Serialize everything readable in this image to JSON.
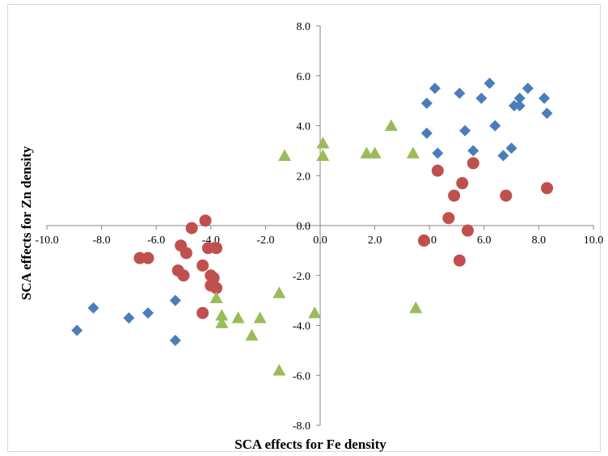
{
  "chart_data": {
    "type": "scatter",
    "xlabel": "SCA effects for Fe density",
    "ylabel": "SCA effects for Zn density",
    "xlim": [
      -10,
      10
    ],
    "ylim": [
      -8,
      8
    ],
    "x_ticks": [
      -10,
      -8,
      -6,
      -4,
      -2,
      0,
      2,
      4,
      6,
      8,
      10
    ],
    "y_ticks": [
      -8,
      -6,
      -4,
      -2,
      0,
      2,
      4,
      6,
      8
    ],
    "x_tick_labels": [
      "-10.0",
      "-8.0",
      "-6.0",
      "-4.0",
      "-2.0",
      "0.0",
      "2.0",
      "4.0",
      "6.0",
      "8.0",
      "10.0"
    ],
    "y_tick_labels": [
      "-8.0",
      "-6.0",
      "-4.0",
      "-2.0",
      "0.0",
      "2.0",
      "4.0",
      "6.0",
      "8.0"
    ],
    "grid": false,
    "legend": "none",
    "series": [
      {
        "marker": "diamond",
        "color": "#4a7ebb",
        "points": [
          [
            4.2,
            5.5
          ],
          [
            5.1,
            5.3
          ],
          [
            6.2,
            5.7
          ],
          [
            7.6,
            5.5
          ],
          [
            3.9,
            4.9
          ],
          [
            5.9,
            5.1
          ],
          [
            7.3,
            5.1
          ],
          [
            8.2,
            5.1
          ],
          [
            7.1,
            4.8
          ],
          [
            7.3,
            4.8
          ],
          [
            8.3,
            4.5
          ],
          [
            6.4,
            4.0
          ],
          [
            3.9,
            3.7
          ],
          [
            5.3,
            3.8
          ],
          [
            4.3,
            2.9
          ],
          [
            5.6,
            3.0
          ],
          [
            6.7,
            2.8
          ],
          [
            7.0,
            3.1
          ],
          [
            -8.9,
            -4.2
          ],
          [
            -8.3,
            -3.3
          ],
          [
            -7.0,
            -3.7
          ],
          [
            -6.3,
            -3.5
          ],
          [
            -5.3,
            -3.0
          ],
          [
            -5.3,
            -4.6
          ]
        ]
      },
      {
        "marker": "circle",
        "color": "#c0504d",
        "points": [
          [
            4.3,
            2.2
          ],
          [
            5.6,
            2.5
          ],
          [
            5.2,
            1.7
          ],
          [
            4.9,
            1.2
          ],
          [
            6.8,
            1.2
          ],
          [
            8.3,
            1.5
          ],
          [
            4.7,
            0.3
          ],
          [
            5.4,
            -0.2
          ],
          [
            3.8,
            -0.6
          ],
          [
            5.1,
            -1.4
          ],
          [
            -4.2,
            0.2
          ],
          [
            -4.7,
            -0.1
          ],
          [
            -5.1,
            -0.8
          ],
          [
            -4.9,
            -1.1
          ],
          [
            -6.6,
            -1.3
          ],
          [
            -6.3,
            -1.3
          ],
          [
            -4.1,
            -0.9
          ],
          [
            -3.8,
            -0.9
          ],
          [
            -5.2,
            -1.8
          ],
          [
            -5.0,
            -2.0
          ],
          [
            -4.3,
            -1.6
          ],
          [
            -4.0,
            -2.0
          ],
          [
            -3.9,
            -2.1
          ],
          [
            -4.0,
            -2.4
          ],
          [
            -3.8,
            -2.5
          ],
          [
            -4.3,
            -3.5
          ]
        ]
      },
      {
        "marker": "triangle",
        "color": "#9bbb59",
        "points": [
          [
            2.6,
            4.0
          ],
          [
            0.1,
            3.3
          ],
          [
            1.7,
            2.9
          ],
          [
            2.0,
            2.9
          ],
          [
            3.4,
            2.9
          ],
          [
            0.1,
            2.8
          ],
          [
            -1.3,
            2.8
          ],
          [
            -3.8,
            -2.9
          ],
          [
            -3.6,
            -3.6
          ],
          [
            -3.6,
            -3.9
          ],
          [
            -3.0,
            -3.7
          ],
          [
            -2.2,
            -3.7
          ],
          [
            -2.5,
            -4.4
          ],
          [
            -1.5,
            -2.7
          ],
          [
            -0.2,
            -3.5
          ],
          [
            3.5,
            -3.3
          ],
          [
            -1.5,
            -5.8
          ]
        ]
      }
    ]
  }
}
